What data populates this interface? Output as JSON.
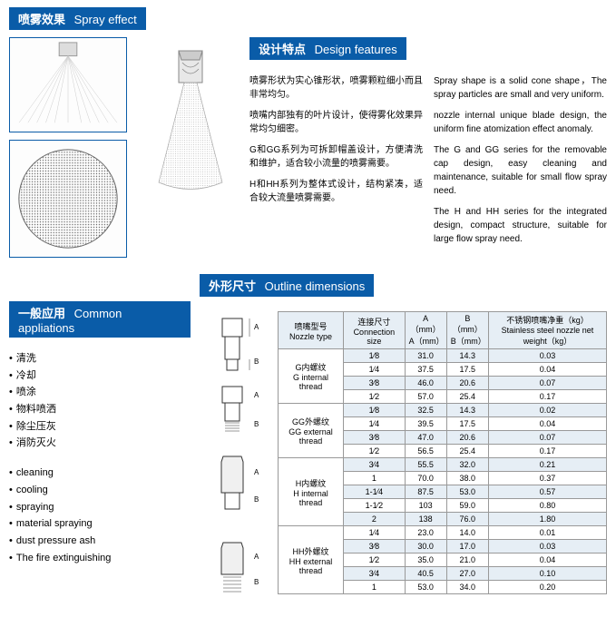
{
  "headers": {
    "spray_effect": {
      "cn": "喷雾效果",
      "en": "Spray effect"
    },
    "design_features": {
      "cn": "设计特点",
      "en": "Design features"
    },
    "common_apps": {
      "cn": "一般应用",
      "en": "Common appliations"
    },
    "outline_dim": {
      "cn": "外形尺寸",
      "en": "Outline dimensions"
    }
  },
  "design_text": {
    "cn": {
      "p1": "喷雾形状为实心锥形状，喷雾颗粒细小而且非常均匀。",
      "p2": "喷嘴内部独有的叶片设计，使得雾化效果异常均匀细密。",
      "p3": "G和GG系列为可拆卸帽盖设计，方便清洗和维护，适合较小流量的喷雾需要。",
      "p4": "H和HH系列为整体式设计，结构紧凑，适合较大流量喷雾需要。"
    },
    "en": {
      "p1": "Spray shape is a solid cone shape，The spray particles are small and very uniform.",
      "p2": "nozzle internal unique blade design, the uniform fine atomization effect anomaly.",
      "p3": "The G and GG series for the removable cap design, easy cleaning and maintenance, suitable for small flow spray need.",
      "p4": "The H and HH series for the integrated design, compact structure, suitable for large flow spray need."
    }
  },
  "apps": {
    "cn": [
      "清洗",
      "冷却",
      "喷涂",
      "物料喷洒",
      "除尘压灰",
      "消防灭火"
    ],
    "en": [
      "cleaning",
      "cooling",
      "spraying",
      "material spraying",
      "dust pressure ash",
      "The fire extinguishing"
    ]
  },
  "table": {
    "columns": {
      "nozzle_type": {
        "cn": "喷嘴型号",
        "en": "Nozzle type"
      },
      "conn_size": {
        "cn": "连接尺寸",
        "en": "Connection size"
      },
      "a": {
        "cn": "A（mm）",
        "en": "A（mm）"
      },
      "b": {
        "cn": "B（mm）",
        "en": "B（mm）"
      },
      "weight": {
        "cn": "不锈钢喷嘴净重（kg）",
        "en": "Stainless steel nozzle net weight（kg）"
      }
    },
    "groups": [
      {
        "type_cn": "G内螺纹",
        "type_en": "G internal thread",
        "rows": [
          {
            "size": "1⁄8",
            "a": "31.0",
            "b": "14.3",
            "w": "0.03"
          },
          {
            "size": "1⁄4",
            "a": "37.5",
            "b": "17.5",
            "w": "0.04"
          },
          {
            "size": "3⁄8",
            "a": "46.0",
            "b": "20.6",
            "w": "0.07"
          },
          {
            "size": "1⁄2",
            "a": "57.0",
            "b": "25.4",
            "w": "0.17"
          }
        ]
      },
      {
        "type_cn": "GG外螺纹",
        "type_en": "GG external thread",
        "rows": [
          {
            "size": "1⁄8",
            "a": "32.5",
            "b": "14.3",
            "w": "0.02"
          },
          {
            "size": "1⁄4",
            "a": "39.5",
            "b": "17.5",
            "w": "0.04"
          },
          {
            "size": "3⁄8",
            "a": "47.0",
            "b": "20.6",
            "w": "0.07"
          },
          {
            "size": "1⁄2",
            "a": "56.5",
            "b": "25.4",
            "w": "0.17"
          }
        ]
      },
      {
        "type_cn": "H内螺纹",
        "type_en": "H internal thread",
        "rows": [
          {
            "size": "3⁄4",
            "a": "55.5",
            "b": "32.0",
            "w": "0.21"
          },
          {
            "size": "1",
            "a": "70.0",
            "b": "38.0",
            "w": "0.37"
          },
          {
            "size": "1-1⁄4",
            "a": "87.5",
            "b": "53.0",
            "w": "0.57"
          },
          {
            "size": "1-1⁄2",
            "a": "103",
            "b": "59.0",
            "w": "0.80"
          },
          {
            "size": "2",
            "a": "138",
            "b": "76.0",
            "w": "1.80"
          }
        ]
      },
      {
        "type_cn": "HH外螺纹",
        "type_en": "HH external thread",
        "rows": [
          {
            "size": "1⁄4",
            "a": "23.0",
            "b": "14.0",
            "w": "0.01"
          },
          {
            "size": "3⁄8",
            "a": "30.0",
            "b": "17.0",
            "w": "0.03"
          },
          {
            "size": "1⁄2",
            "a": "35.0",
            "b": "21.0",
            "w": "0.04"
          },
          {
            "size": "3⁄4",
            "a": "40.5",
            "b": "27.0",
            "w": "0.10"
          },
          {
            "size": "1",
            "a": "53.0",
            "b": "34.0",
            "w": "0.20"
          }
        ]
      }
    ]
  },
  "colors": {
    "brand_blue": "#0a5ca8",
    "stripe": "#e6eef5",
    "border": "#999"
  }
}
